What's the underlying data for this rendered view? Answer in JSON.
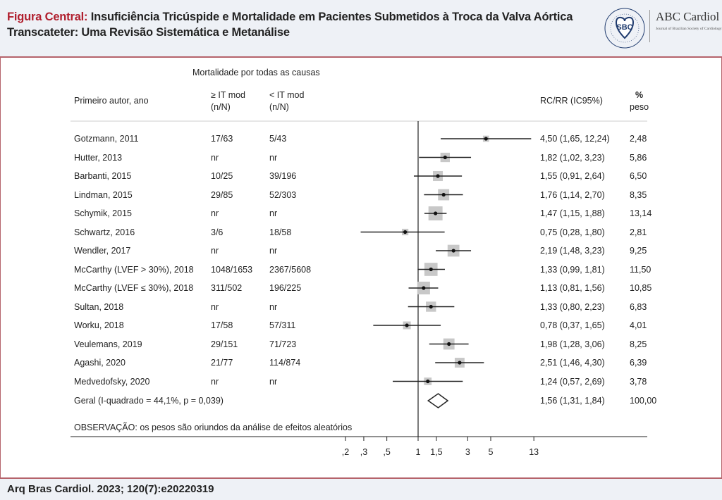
{
  "header": {
    "title_lead": "Figura Central:",
    "title_rest": "Insuficiência Tricúspide e Mortalidade em Pacientes Submetidos à Troca da Valva Aórtica",
    "title_line2": "Transcateter: Uma Revisão Sistemática e Metanálise",
    "logo_text": "SBC",
    "brand_name": "ABC Cardiol",
    "brand_sub": "Journal of Brazilian Society of Cardiology"
  },
  "footer": {
    "citation": "Arq Bras Cardiol. 2023; 120(7):e20220319"
  },
  "colors": {
    "accent": "#b01e2d",
    "border": "#b5636b",
    "header_bg": "#eef1f6",
    "square": "#c8c8c8"
  },
  "chart_data": {
    "type": "forest",
    "title": "Mortalidade por todas as causas",
    "columns": {
      "author": "Primeiro autor, ano",
      "ge_line1": "≥ IT mod",
      "ge_line2": "(n/N)",
      "lt_line1": "< IT mod",
      "lt_line2": "(n/N)",
      "ci": "RC/RR (IC95%)",
      "weight_line1": "%",
      "weight_line2": "peso"
    },
    "xscale": "log",
    "xticks": [
      0.2,
      0.3,
      0.5,
      1,
      1.5,
      3,
      5,
      13
    ],
    "xtick_labels": [
      ",2",
      ",3",
      ",5",
      "1",
      "1,5",
      "3",
      "5",
      "13"
    ],
    "studies": [
      {
        "author": "Gotzmann, 2011",
        "ge": "17/63",
        "lt": "5/43",
        "est": 4.5,
        "lo": 1.65,
        "hi": 12.24,
        "ci_text": "4,50 (1,65, 12,24)",
        "weight": 2.48,
        "weight_text": "2,48"
      },
      {
        "author": "Hutter, 2013",
        "ge": "nr",
        "lt": "nr",
        "est": 1.82,
        "lo": 1.02,
        "hi": 3.23,
        "ci_text": "1,82 (1,02, 3,23)",
        "weight": 5.86,
        "weight_text": "5,86"
      },
      {
        "author": "Barbanti, 2015",
        "ge": "10/25",
        "lt": "39/196",
        "est": 1.55,
        "lo": 0.91,
        "hi": 2.64,
        "ci_text": "1,55 (0,91, 2,64)",
        "weight": 6.5,
        "weight_text": "6,50"
      },
      {
        "author": "Lindman, 2015",
        "ge": "29/85",
        "lt": "52/303",
        "est": 1.76,
        "lo": 1.14,
        "hi": 2.7,
        "ci_text": "1,76 (1,14, 2,70)",
        "weight": 8.35,
        "weight_text": "8,35"
      },
      {
        "author": "Schymik, 2015",
        "ge": "nr",
        "lt": "nr",
        "est": 1.47,
        "lo": 1.15,
        "hi": 1.88,
        "ci_text": "1,47 (1,15, 1,88)",
        "weight": 13.14,
        "weight_text": "13,14"
      },
      {
        "author": "Schwartz, 2016",
        "ge": "3/6",
        "lt": "18/58",
        "est": 0.75,
        "lo": 0.28,
        "hi": 1.8,
        "ci_text": "0,75 (0,28, 1,80)",
        "weight": 2.81,
        "weight_text": "2,81"
      },
      {
        "author": "Wendler, 2017",
        "ge": "nr",
        "lt": "nr",
        "est": 2.19,
        "lo": 1.48,
        "hi": 3.23,
        "ci_text": "2,19 (1,48, 3,23)",
        "weight": 9.25,
        "weight_text": "9,25"
      },
      {
        "author": "McCarthy (LVEF > 30%), 2018",
        "ge": "1048/1653",
        "lt": "2367/5608",
        "est": 1.33,
        "lo": 0.99,
        "hi": 1.81,
        "ci_text": "1,33 (0,99, 1,81)",
        "weight": 11.5,
        "weight_text": "11,50"
      },
      {
        "author": "McCarthy (LVEF ≤ 30%), 2018",
        "ge": "311/502",
        "lt": "196/225",
        "est": 1.13,
        "lo": 0.81,
        "hi": 1.56,
        "ci_text": "1,13 (0,81, 1,56)",
        "weight": 10.85,
        "weight_text": "10,85"
      },
      {
        "author": "Sultan, 2018",
        "ge": "nr",
        "lt": "nr",
        "est": 1.33,
        "lo": 0.8,
        "hi": 2.23,
        "ci_text": "1,33 (0,80, 2,23)",
        "weight": 6.83,
        "weight_text": "6,83"
      },
      {
        "author": "Worku, 2018",
        "ge": "17/58",
        "lt": "57/311",
        "est": 0.78,
        "lo": 0.37,
        "hi": 1.65,
        "ci_text": "0,78 (0,37, 1,65)",
        "weight": 4.01,
        "weight_text": "4,01"
      },
      {
        "author": "Veulemans, 2019",
        "ge": "29/151",
        "lt": "71/723",
        "est": 1.98,
        "lo": 1.28,
        "hi": 3.06,
        "ci_text": "1,98 (1,28, 3,06)",
        "weight": 8.25,
        "weight_text": "8,25"
      },
      {
        "author": "Agashi, 2020",
        "ge": "21/77",
        "lt": "114/874",
        "est": 2.51,
        "lo": 1.46,
        "hi": 4.3,
        "ci_text": "2,51 (1,46, 4,30)",
        "weight": 6.39,
        "weight_text": "6,39"
      },
      {
        "author": "Medvedofsky, 2020",
        "ge": "nr",
        "lt": "nr",
        "est": 1.24,
        "lo": 0.57,
        "hi": 2.69,
        "ci_text": "1,24 (0,57, 2,69)",
        "weight": 3.78,
        "weight_text": "3,78"
      }
    ],
    "overall": {
      "label": "Geral (I-quadrado = 44,1%, p = 0,039)",
      "est": 1.56,
      "lo": 1.31,
      "hi": 1.84,
      "ci_text": "1,56 (1,31, 1,84)",
      "weight_text": "100,00"
    },
    "note": "OBSERVAÇÃO: os pesos são oriundos da análise de efeitos aleatórios"
  }
}
